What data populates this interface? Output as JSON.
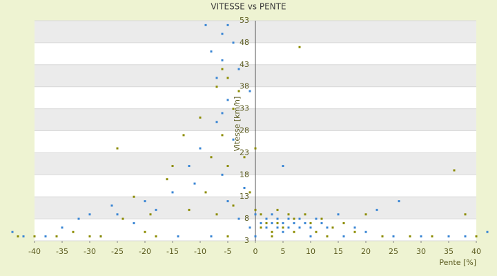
{
  "chart_data": {
    "type": "scatter",
    "title": "VITESSE vs PENTE",
    "x_label": "Pente [%]",
    "y_label": "Vitesse [km/h]",
    "xlim": [
      -40,
      40
    ],
    "xticks": [
      -40,
      -35,
      -30,
      -25,
      -20,
      -15,
      -10,
      -5,
      0,
      5,
      10,
      15,
      20,
      25,
      30,
      35,
      40
    ],
    "ylim": [
      3,
      53
    ],
    "yticks": [
      3,
      8,
      13,
      18,
      23,
      28,
      33,
      38,
      43,
      48,
      53
    ],
    "grid": true,
    "series": [
      {
        "color": "#3a86d4",
        "x": [
          -44,
          -42,
          -38,
          -35,
          -32,
          -30,
          -26,
          -22,
          -18,
          -15,
          -12,
          -10,
          -9,
          -8,
          -7,
          -7,
          -6,
          -6,
          -6,
          -5,
          -5,
          -5,
          -4,
          -4,
          -3,
          -3,
          -2,
          -1,
          0,
          1,
          2,
          2,
          3,
          3,
          4,
          4,
          5,
          5,
          6,
          6,
          7,
          8,
          8,
          9,
          10,
          11,
          12,
          13,
          15,
          18,
          20,
          22,
          25,
          30,
          35,
          38,
          42,
          -20,
          -25,
          -14,
          -11,
          5,
          26,
          -8,
          10,
          0,
          -28,
          16,
          -1,
          -6
        ],
        "values": [
          5,
          4,
          4,
          6,
          8,
          9,
          11,
          7,
          10,
          14,
          20,
          24,
          52,
          46,
          40,
          30,
          50,
          44,
          18,
          52,
          35,
          12,
          48,
          26,
          42,
          8,
          15,
          6,
          9,
          7,
          8,
          6,
          7,
          9,
          6,
          8,
          7,
          5,
          8,
          6,
          7,
          6,
          8,
          7,
          6,
          8,
          7,
          6,
          9,
          6,
          5,
          10,
          4,
          4,
          4,
          4,
          5,
          12,
          9,
          4,
          16,
          20,
          12,
          4,
          4,
          4,
          4,
          4,
          37,
          32
        ]
      },
      {
        "color": "#8c8c00",
        "x": [
          -43,
          -40,
          -36,
          -33,
          -28,
          -25,
          -24,
          -20,
          -19,
          -16,
          -13,
          -12,
          -10,
          -9,
          -8,
          -7,
          -7,
          -6,
          -6,
          -5,
          -5,
          -4,
          -4,
          -3,
          -2,
          -1,
          0,
          1,
          1,
          2,
          3,
          4,
          4,
          5,
          6,
          7,
          7,
          8,
          9,
          10,
          11,
          12,
          14,
          16,
          18,
          20,
          23,
          28,
          32,
          36,
          38,
          40,
          -30,
          -18,
          -5,
          3,
          13,
          -22,
          -15,
          0
        ],
        "values": [
          4,
          4,
          4,
          5,
          4,
          24,
          8,
          5,
          9,
          17,
          27,
          10,
          31,
          14,
          22,
          38,
          9,
          42,
          27,
          40,
          20,
          33,
          11,
          37,
          22,
          14,
          10,
          6,
          9,
          7,
          5,
          10,
          7,
          6,
          9,
          5,
          8,
          47,
          9,
          7,
          5,
          8,
          6,
          7,
          5,
          9,
          4,
          4,
          4,
          19,
          9,
          4,
          4,
          4,
          4,
          4,
          4,
          13,
          20,
          24
        ]
      }
    ]
  }
}
